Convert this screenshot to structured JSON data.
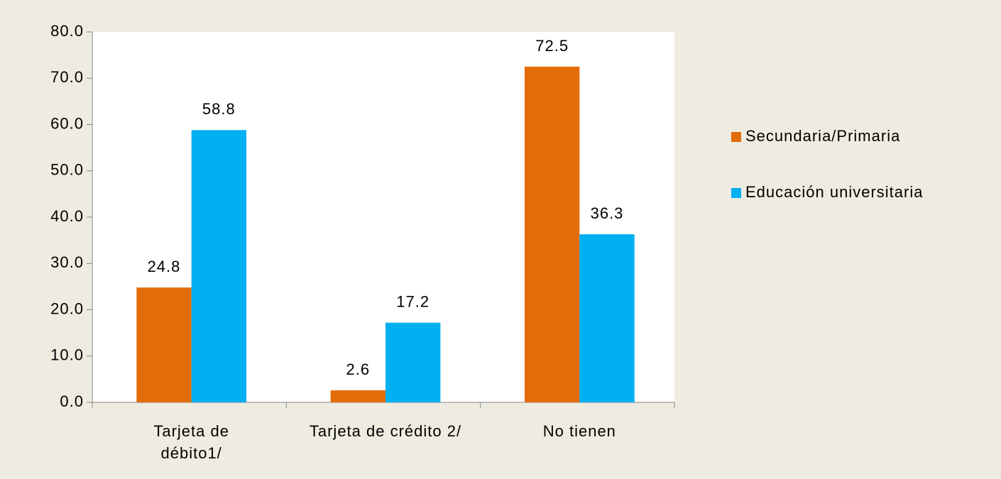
{
  "chart_data": {
    "type": "bar",
    "categories": [
      "Tarjeta de débito1/",
      "Tarjeta de crédito 2/",
      "No tienen"
    ],
    "series": [
      {
        "name": "Secundaria/Primaria",
        "color": "#e36c0a",
        "values": [
          24.8,
          2.6,
          72.5
        ]
      },
      {
        "name": "Educación universitaria",
        "color": "#00b0f0",
        "values": [
          58.8,
          17.2,
          36.3
        ]
      }
    ],
    "ylim": [
      0,
      80
    ],
    "yticks": [
      {
        "value": 0,
        "label": "0.0"
      },
      {
        "value": 10,
        "label": "10.0"
      },
      {
        "value": 20,
        "label": "20.0"
      },
      {
        "value": 30,
        "label": "30.0"
      },
      {
        "value": 40,
        "label": "40.0"
      },
      {
        "value": 50,
        "label": "50.0"
      },
      {
        "value": 60,
        "label": "60.0"
      },
      {
        "value": 70,
        "label": "70.0"
      },
      {
        "value": 80,
        "label": "80.0"
      }
    ],
    "grid": false,
    "legend": "right"
  }
}
